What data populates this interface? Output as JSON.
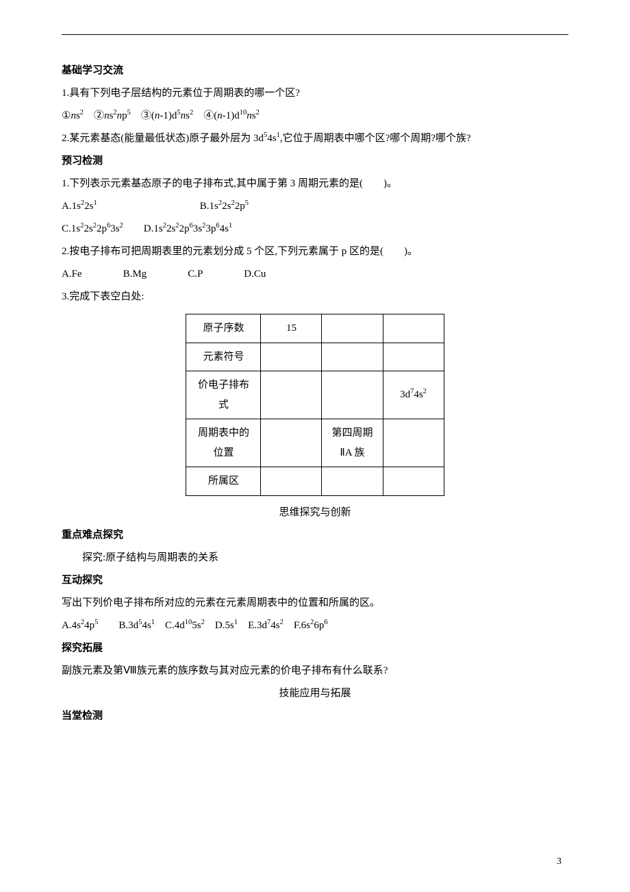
{
  "sec1_title": "基础学习交流",
  "q1_text": "1.具有下列电子层结构的元素位于周期表的哪一个区?",
  "q1_opts_html": "①<span class=\"italic\">n</span>s<sup>2</sup>　②<span class=\"italic\">n</span>s<sup>2</sup><span class=\"italic\">n</span>p<sup>5</sup>　③(<span class=\"italic\">n</span>-1)d<sup>5</sup><span class=\"italic\">n</span>s<sup>2</sup>　④(<span class=\"italic\">n</span>-1)d<sup>10</sup><span class=\"italic\">n</span>s<sup>2</sup>",
  "q2_text_html": "2.某元素基态(能量最低状态)原子最外层为 3d<sup>5</sup>4s<sup>1</sup>,它位于周期表中哪个区?哪个周期?哪个族?",
  "sec2_title": "预习检测",
  "p1_text": "1.下列表示元素基态原子的电子排布式,其中属于第 3 周期元素的是(　　)。",
  "p1_ab_html": "A.1s<sup>2</sup>2s<sup>1</sup>　　　　　　　　　　B.1s<sup>2</sup>2s<sup>2</sup>2p<sup>5</sup>",
  "p1_cd_html": "C.1s<sup>2</sup>2s<sup>2</sup>2p<sup>6</sup>3s<sup>2</sup>　　D.1s<sup>2</sup>2s<sup>2</sup>2p<sup>6</sup>3s<sup>2</sup>3p<sup>6</sup>4s<sup>1</sup>",
  "p2_text": "2.按电子排布可把周期表里的元素划分成 5 个区,下列元素属于 p 区的是(　　)。",
  "p2_choices": {
    "a": "A.Fe",
    "b": "B.Mg",
    "c": "C.P",
    "d": "D.Cu"
  },
  "p3_text": "3.完成下表空白处:",
  "table": {
    "r1c1": "原子序数",
    "r1c2": "15",
    "r1c3": "",
    "r1c4": "",
    "r2c1": "元素符号",
    "r2c2": "",
    "r2c3": "",
    "r2c4": "",
    "r3c1_html": "价电子排布<br>式",
    "r3c2": "",
    "r3c3": "",
    "r3c4_html": "3d<sup>7</sup>4s<sup>2</sup>",
    "r4c1_html": "周期表中的<br>位置",
    "r4c2": "",
    "r4c3_html": "第四周期<br>ⅡA 族",
    "r4c4": "",
    "r5c1": "所属区",
    "r5c2": "",
    "r5c3": "",
    "r5c4": ""
  },
  "mid1": "思维探究与创新",
  "sec3_title": "重点难点探究",
  "sec3_sub": "探究:原子结构与周期表的关系",
  "sec4_title": "互动探究",
  "sec4_line": "写出下列价电子排布所对应的元素在元素周期表中的位置和所属的区。",
  "sec4_opts_html": "A.4s<sup>2</sup>4p<sup>5</sup>　　B.3d<sup>5</sup>4s<sup>1</sup>　C.4d<sup>10</sup>5s<sup>2</sup>　D.5s<sup>1</sup>　E.3d<sup>7</sup>4s<sup>2</sup>　F.6s<sup>2</sup>6p<sup>6</sup>",
  "sec5_title": "探究拓展",
  "sec5_line": "副族元素及第Ⅷ族元素的族序数与其对应元素的价电子排布有什么联系?",
  "mid2": "技能应用与拓展",
  "sec6_title": "当堂检测",
  "page_num": "3"
}
